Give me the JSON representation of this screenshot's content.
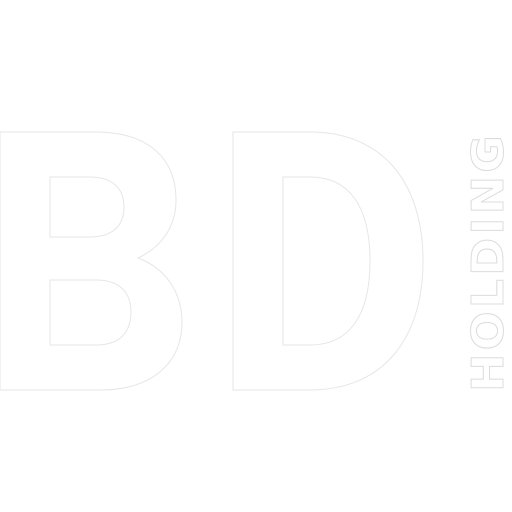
{
  "logo": {
    "mark_letters": "BD",
    "wordmark": "HOLDING"
  },
  "colors": {
    "background": "#ffffff",
    "fill": "#ffffff",
    "outline": "#e6e6e6"
  }
}
